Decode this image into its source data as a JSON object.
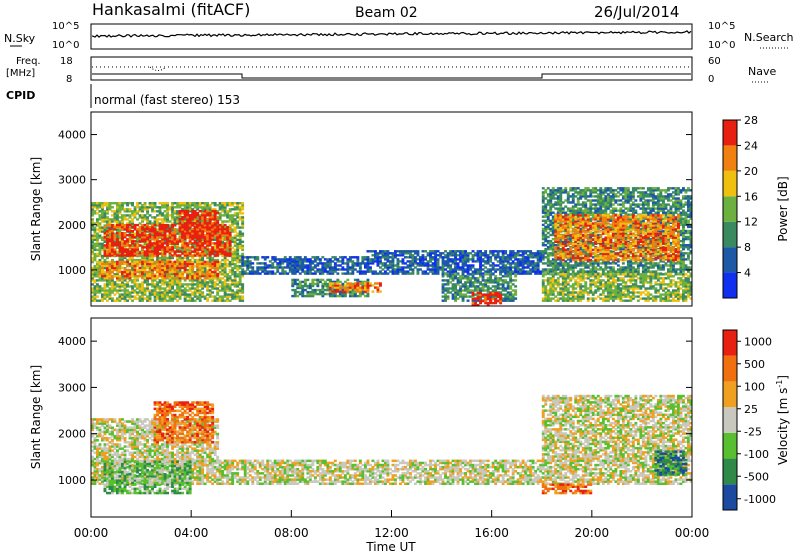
{
  "header": {
    "station": "Hankasalmi (fitACF)",
    "beam": "Beam 02",
    "date": "26/Jul/2014"
  },
  "noise_panel": {
    "left_label": "N.Sky",
    "tick_top": "10^5",
    "tick_bottom": "10^0",
    "right_label": "N.Search"
  },
  "freq_panel": {
    "left_label_line1": "Freq.",
    "left_label_line2": "[MHz]",
    "tick_top": "18",
    "tick_bottom": "8",
    "right_tick_top": "60",
    "right_tick_bottom": "0",
    "right_label": "Nave"
  },
  "cpid": {
    "label": "CPID",
    "value": "normal (fast stereo) 153"
  },
  "chart_data": [
    {
      "type": "heatmap",
      "name": "power",
      "ylabel": "Slant Range [km]",
      "ylim": [
        200,
        4500
      ],
      "yticks": [
        "1000",
        "2000",
        "3000",
        "4000"
      ],
      "colorbar_label": "Power [dB]",
      "colorbar_ticks": [
        "4",
        "8",
        "12",
        "16",
        "20",
        "24",
        "28"
      ],
      "colorbar_colors": [
        "#1030f0",
        "#1c5aa8",
        "#3a8a60",
        "#6cb040",
        "#f0c010",
        "#f08010",
        "#e82010"
      ],
      "regions": [
        {
          "t0": 0.0,
          "t1": 6.0,
          "r0": 300,
          "r1": 2500,
          "level": 3
        },
        {
          "t0": 0.5,
          "t1": 5.5,
          "r0": 1300,
          "r1": 2000,
          "level": 6
        },
        {
          "t0": 0.3,
          "t1": 5.0,
          "r0": 800,
          "r1": 1200,
          "level": 5
        },
        {
          "t0": 3.5,
          "t1": 5.0,
          "r0": 1700,
          "r1": 2300,
          "level": 6
        },
        {
          "t0": 6.0,
          "t1": 11.0,
          "r0": 900,
          "r1": 1300,
          "level": 1
        },
        {
          "t0": 8.0,
          "t1": 11.0,
          "r0": 400,
          "r1": 800,
          "level": 2
        },
        {
          "t0": 9.5,
          "t1": 11.5,
          "r0": 500,
          "r1": 700,
          "level": 5
        },
        {
          "t0": 11.0,
          "t1": 18.0,
          "r0": 900,
          "r1": 1400,
          "level": 1
        },
        {
          "t0": 14.0,
          "t1": 17.0,
          "r0": 300,
          "r1": 900,
          "level": 2
        },
        {
          "t0": 15.2,
          "t1": 16.4,
          "r0": 200,
          "r1": 500,
          "level": 6
        },
        {
          "t0": 18.0,
          "t1": 24.0,
          "r0": 900,
          "r1": 2800,
          "level": 2
        },
        {
          "t0": 18.5,
          "t1": 23.5,
          "r0": 1200,
          "r1": 2200,
          "level": 5
        },
        {
          "t0": 18.0,
          "t1": 24.0,
          "r0": 300,
          "r1": 900,
          "level": 3
        }
      ]
    },
    {
      "type": "heatmap",
      "name": "velocity",
      "ylabel": "Slant Range [km]",
      "ylim": [
        200,
        4500
      ],
      "yticks": [
        "1000",
        "2000",
        "3000",
        "4000"
      ],
      "colorbar_label": "Velocity [m s^-1]",
      "colorbar_ticks": [
        "1000",
        "500",
        "100",
        "25",
        "-25",
        "-100",
        "-500",
        "-1000"
      ],
      "colorbar_colors": [
        "#1c4aa0",
        "#2f8a48",
        "#58c030",
        "#c8c8be",
        "#f0a020",
        "#f07010",
        "#e82010"
      ],
      "regions": [
        {
          "t0": 0.0,
          "t1": 24.0,
          "r0": 900,
          "r1": 1400,
          "level": 3
        },
        {
          "t0": 0.0,
          "t1": 5.0,
          "r0": 1300,
          "r1": 2300,
          "level": 3
        },
        {
          "t0": 0.5,
          "t1": 4.0,
          "r0": 700,
          "r1": 1400,
          "level": 2
        },
        {
          "t0": 2.5,
          "t1": 4.8,
          "r0": 1800,
          "r1": 2700,
          "level": 5
        },
        {
          "t0": 18.0,
          "t1": 24.0,
          "r0": 1400,
          "r1": 2800,
          "level": 3
        },
        {
          "t0": 22.5,
          "t1": 23.8,
          "r0": 1100,
          "r1": 1600,
          "level": 1
        },
        {
          "t0": 18.0,
          "t1": 20.0,
          "r0": 700,
          "r1": 900,
          "level": 5
        }
      ]
    }
  ],
  "time_axis": {
    "xlabel": "Time UT",
    "ticks": [
      "00:00",
      "04:00",
      "08:00",
      "12:00",
      "16:00",
      "20:00",
      "00:00"
    ]
  }
}
